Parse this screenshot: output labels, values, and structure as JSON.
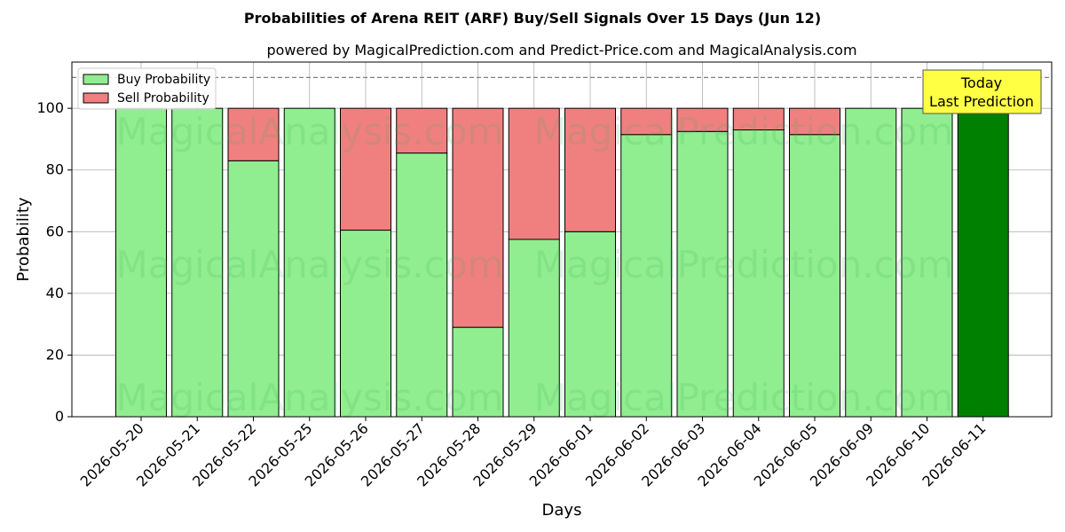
{
  "chart_data": {
    "type": "bar",
    "stacked": true,
    "title": "Probabilities of Arena REIT (ARF) Buy/Sell Signals Over 15 Days (Jun 12)",
    "subtitle": "powered by MagicalPrediction.com and Predict-Price.com and MagicalAnalysis.com",
    "xlabel": "Days",
    "ylabel": "Probability",
    "ylim": [
      0,
      115
    ],
    "yticks": [
      0,
      20,
      40,
      60,
      80,
      100
    ],
    "reference_line": 110,
    "grid": true,
    "legend_position": "top-left",
    "categories": [
      "2026-05-20",
      "2026-05-21",
      "2026-05-22",
      "2026-05-25",
      "2026-05-26",
      "2026-05-27",
      "2026-05-28",
      "2026-05-29",
      "2026-06-01",
      "2026-06-02",
      "2026-06-03",
      "2026-06-04",
      "2026-06-05",
      "2026-06-09",
      "2026-06-10",
      "2026-06-11"
    ],
    "series": [
      {
        "name": "Buy Probability",
        "color": "#90ee90",
        "values": [
          100,
          100,
          83,
          100,
          60.5,
          85.5,
          29,
          57.5,
          60,
          91.5,
          92.5,
          93,
          91.5,
          100,
          100,
          100
        ]
      },
      {
        "name": "Sell Probability",
        "color": "#f08080",
        "values": [
          0,
          0,
          17,
          0,
          39.5,
          14.5,
          71,
          42.5,
          40,
          8.5,
          7.5,
          7,
          8.5,
          0,
          0,
          0
        ]
      }
    ],
    "highlight": {
      "index": 15,
      "color": "#008000"
    },
    "annotation": {
      "lines": [
        "Today",
        "Last Prediction"
      ],
      "background": "#ffff44"
    },
    "watermarks": [
      "MagicalAnalysis.com",
      "MagicalPrediction.com"
    ]
  }
}
